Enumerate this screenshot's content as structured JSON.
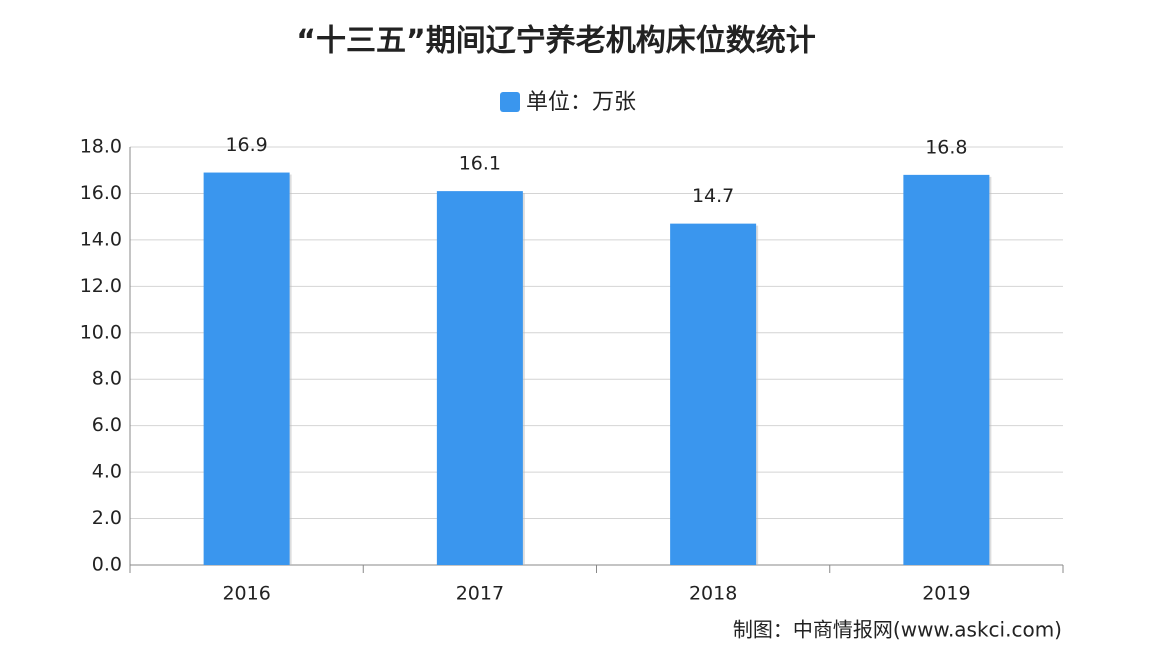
{
  "chart_data": {
    "type": "bar",
    "title": "“十三五”期间辽宁养老机构床位数统计",
    "legend": "单位：万张",
    "categories": [
      "2016",
      "2017",
      "2018",
      "2019"
    ],
    "values": [
      16.9,
      16.1,
      14.7,
      16.8
    ],
    "color": "#3a96ee",
    "ylim": [
      0,
      18
    ],
    "yticks": [
      {
        "value": 0,
        "label": "0.0"
      },
      {
        "value": 2,
        "label": "2.0"
      },
      {
        "value": 4,
        "label": "4.0"
      },
      {
        "value": 6,
        "label": "6.0"
      },
      {
        "value": 8,
        "label": "8.0"
      },
      {
        "value": 10,
        "label": "10.0"
      },
      {
        "value": 12,
        "label": "12.0"
      },
      {
        "value": 14,
        "label": "14.0"
      },
      {
        "value": 16,
        "label": "16.0"
      },
      {
        "value": 18,
        "label": "18.0"
      }
    ],
    "grid": true,
    "source": "制图：中商情报网(www.askci.com)"
  }
}
